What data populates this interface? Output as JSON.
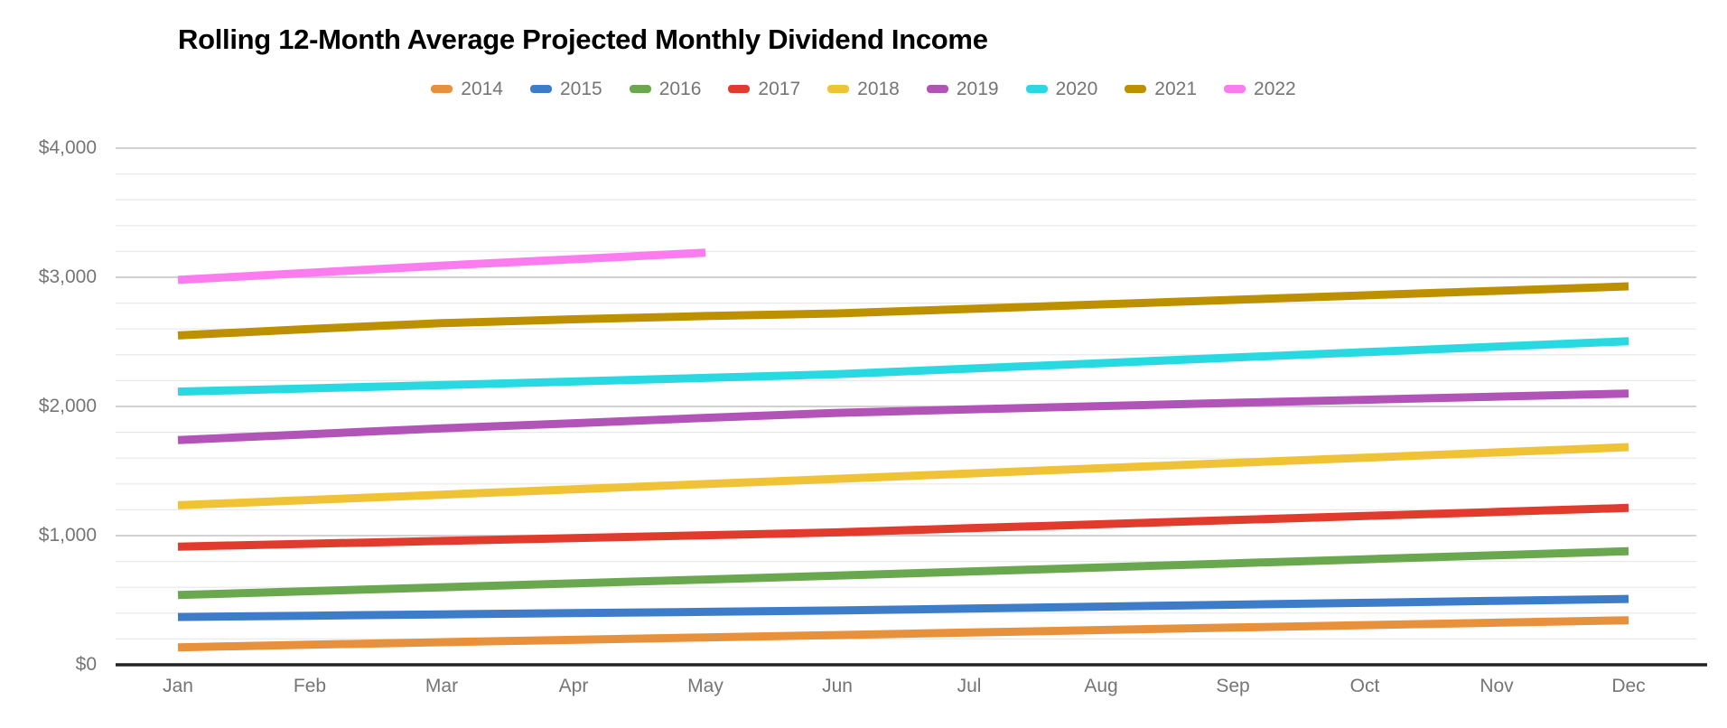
{
  "title": "Rolling 12-Month Average Projected Monthly Dividend Income",
  "chart_data": {
    "type": "line",
    "title": "Rolling 12-Month Average Projected Monthly Dividend Income",
    "categories": [
      "Jan",
      "Feb",
      "Mar",
      "Apr",
      "May",
      "Jun",
      "Jul",
      "Aug",
      "Sep",
      "Oct",
      "Nov",
      "Dec"
    ],
    "xlabel": "",
    "ylabel": "",
    "ylim": [
      0,
      4000
    ],
    "y_major_ticks": [
      {
        "label": "$0",
        "value": 0
      },
      {
        "label": "$1,000",
        "value": 1000
      },
      {
        "label": "$2,000",
        "value": 2000
      },
      {
        "label": "$3,000",
        "value": 3000
      },
      {
        "label": "$4,000",
        "value": 4000
      }
    ],
    "y_minor_step": 200,
    "grid": true,
    "legend_position": "top",
    "series": [
      {
        "name": "2014",
        "color": "#E8913C",
        "values": [
          135,
          155,
          175,
          193,
          212,
          230,
          250,
          269,
          288,
          307,
          326,
          345
        ]
      },
      {
        "name": "2015",
        "color": "#3D7CC9",
        "values": [
          370,
          380,
          390,
          400,
          410,
          420,
          435,
          450,
          465,
          480,
          495,
          510
        ]
      },
      {
        "name": "2016",
        "color": "#6AA850",
        "values": [
          540,
          570,
          600,
          630,
          660,
          690,
          722,
          754,
          785,
          817,
          848,
          880
        ]
      },
      {
        "name": "2017",
        "color": "#E13B2E",
        "values": [
          915,
          937,
          959,
          981,
          1003,
          1025,
          1057,
          1088,
          1120,
          1152,
          1183,
          1215
        ]
      },
      {
        "name": "2018",
        "color": "#F0C235",
        "values": [
          1235,
          1276,
          1317,
          1358,
          1399,
          1440,
          1481,
          1522,
          1563,
          1603,
          1644,
          1685
        ]
      },
      {
        "name": "2019",
        "color": "#B153B7",
        "values": [
          1740,
          1785,
          1830,
          1870,
          1912,
          1950,
          1977,
          2003,
          2028,
          2052,
          2076,
          2100
        ]
      },
      {
        "name": "2020",
        "color": "#29D9E2",
        "values": [
          2115,
          2140,
          2165,
          2193,
          2221,
          2250,
          2293,
          2335,
          2378,
          2420,
          2463,
          2505
        ]
      },
      {
        "name": "2021",
        "color": "#BD9000",
        "values": [
          2550,
          2600,
          2645,
          2675,
          2700,
          2720,
          2755,
          2790,
          2825,
          2860,
          2895,
          2930
        ]
      },
      {
        "name": "2022",
        "color": "#FB7CEF",
        "values": [
          2980,
          3035,
          3090,
          3140,
          3190,
          null,
          null,
          null,
          null,
          null,
          null,
          null
        ]
      }
    ]
  },
  "colors": {
    "axis": "#212121",
    "grid_major": "#cccccc",
    "grid_minor": "#e9e9e9",
    "muted_text": "#757575"
  }
}
